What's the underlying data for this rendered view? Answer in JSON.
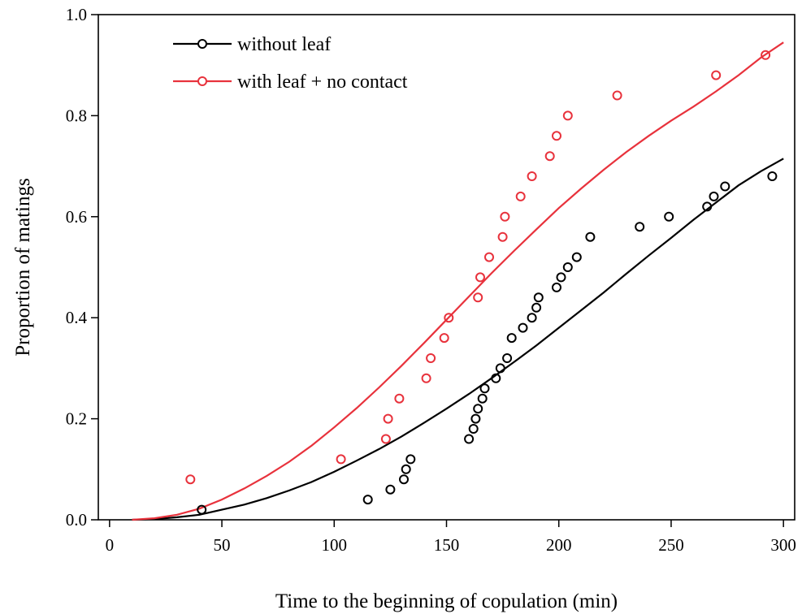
{
  "chart_data": {
    "type": "scatter",
    "xlabel": "Time to the beginning of copulation (min)",
    "ylabel": "Proportion of matings",
    "xlim": [
      -5,
      305
    ],
    "ylim": [
      0,
      1.0
    ],
    "x_ticks": [
      0,
      50,
      100,
      150,
      200,
      250,
      300
    ],
    "x_tick_labels": [
      "0",
      "50",
      "100",
      "150",
      "200",
      "250",
      "300"
    ],
    "y_ticks": [
      0,
      0.2,
      0.4,
      0.6,
      0.8,
      1.0
    ],
    "y_tick_labels": [
      "0.0",
      "0.2",
      "0.4",
      "0.6",
      "0.8",
      "1.0"
    ],
    "grid": false,
    "legend_position": "top-left",
    "series": [
      {
        "name": "without leaf",
        "color": "#000000",
        "marker": "open-circle",
        "points": [
          [
            41,
            0.02
          ],
          [
            115,
            0.04
          ],
          [
            125,
            0.06
          ],
          [
            131,
            0.08
          ],
          [
            132,
            0.1
          ],
          [
            134,
            0.12
          ],
          [
            160,
            0.16
          ],
          [
            162,
            0.18
          ],
          [
            163,
            0.2
          ],
          [
            164,
            0.22
          ],
          [
            166,
            0.24
          ],
          [
            167,
            0.26
          ],
          [
            172,
            0.28
          ],
          [
            174,
            0.3
          ],
          [
            177,
            0.32
          ],
          [
            179,
            0.36
          ],
          [
            184,
            0.38
          ],
          [
            188,
            0.4
          ],
          [
            190,
            0.42
          ],
          [
            191,
            0.44
          ],
          [
            199,
            0.46
          ],
          [
            201,
            0.48
          ],
          [
            204,
            0.5
          ],
          [
            208,
            0.52
          ],
          [
            214,
            0.56
          ],
          [
            236,
            0.58
          ],
          [
            249,
            0.6
          ],
          [
            266,
            0.62
          ],
          [
            269,
            0.64
          ],
          [
            274,
            0.66
          ],
          [
            295,
            0.68
          ]
        ],
        "fit_curve": [
          [
            10,
            0.0
          ],
          [
            20,
            0.0015
          ],
          [
            30,
            0.005
          ],
          [
            40,
            0.01
          ],
          [
            50,
            0.02
          ],
          [
            60,
            0.03
          ],
          [
            70,
            0.043
          ],
          [
            80,
            0.058
          ],
          [
            90,
            0.075
          ],
          [
            100,
            0.095
          ],
          [
            110,
            0.117
          ],
          [
            120,
            0.14
          ],
          [
            130,
            0.165
          ],
          [
            140,
            0.192
          ],
          [
            150,
            0.22
          ],
          [
            160,
            0.249
          ],
          [
            170,
            0.28
          ],
          [
            180,
            0.312
          ],
          [
            190,
            0.345
          ],
          [
            200,
            0.38
          ],
          [
            210,
            0.415
          ],
          [
            220,
            0.45
          ],
          [
            230,
            0.487
          ],
          [
            240,
            0.523
          ],
          [
            250,
            0.558
          ],
          [
            260,
            0.594
          ],
          [
            270,
            0.628
          ],
          [
            280,
            0.662
          ],
          [
            290,
            0.69
          ],
          [
            300,
            0.715
          ]
        ]
      },
      {
        "name": "with leaf + no contact",
        "color": "#e8323c",
        "marker": "open-circle",
        "points": [
          [
            36,
            0.08
          ],
          [
            103,
            0.12
          ],
          [
            123,
            0.16
          ],
          [
            124,
            0.2
          ],
          [
            129,
            0.24
          ],
          [
            141,
            0.28
          ],
          [
            143,
            0.32
          ],
          [
            149,
            0.36
          ],
          [
            151,
            0.4
          ],
          [
            164,
            0.44
          ],
          [
            165,
            0.48
          ],
          [
            169,
            0.52
          ],
          [
            175,
            0.56
          ],
          [
            176,
            0.6
          ],
          [
            183,
            0.64
          ],
          [
            188,
            0.68
          ],
          [
            196,
            0.72
          ],
          [
            199,
            0.76
          ],
          [
            204,
            0.8
          ],
          [
            226,
            0.84
          ],
          [
            270,
            0.88
          ],
          [
            292,
            0.92
          ]
        ],
        "fit_curve": [
          [
            10,
            0.0
          ],
          [
            20,
            0.003
          ],
          [
            30,
            0.01
          ],
          [
            40,
            0.022
          ],
          [
            50,
            0.04
          ],
          [
            60,
            0.062
          ],
          [
            70,
            0.087
          ],
          [
            80,
            0.115
          ],
          [
            90,
            0.147
          ],
          [
            100,
            0.183
          ],
          [
            110,
            0.221
          ],
          [
            120,
            0.262
          ],
          [
            130,
            0.305
          ],
          [
            140,
            0.35
          ],
          [
            150,
            0.396
          ],
          [
            160,
            0.442
          ],
          [
            170,
            0.488
          ],
          [
            180,
            0.532
          ],
          [
            190,
            0.575
          ],
          [
            200,
            0.617
          ],
          [
            210,
            0.656
          ],
          [
            220,
            0.693
          ],
          [
            230,
            0.728
          ],
          [
            240,
            0.76
          ],
          [
            250,
            0.79
          ],
          [
            260,
            0.818
          ],
          [
            270,
            0.848
          ],
          [
            280,
            0.88
          ],
          [
            290,
            0.915
          ],
          [
            300,
            0.945
          ]
        ]
      }
    ]
  }
}
